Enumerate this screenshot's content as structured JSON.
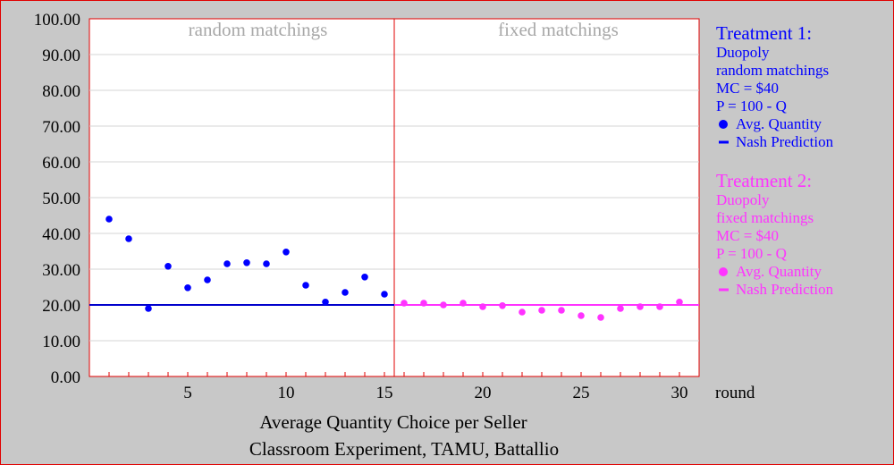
{
  "chart_data": {
    "type": "scatter",
    "x": [
      1,
      2,
      3,
      4,
      5,
      6,
      7,
      8,
      9,
      10,
      11,
      12,
      13,
      14,
      15,
      16,
      17,
      18,
      19,
      20,
      21,
      22,
      23,
      24,
      25,
      26,
      27,
      28,
      29,
      30
    ],
    "xlim": [
      0,
      31
    ],
    "ylim": [
      0,
      100
    ],
    "x_ticks": [
      5,
      10,
      15,
      20,
      25,
      30
    ],
    "y_ticks": [
      "0.00",
      "10.00",
      "20.00",
      "30.00",
      "40.00",
      "50.00",
      "60.00",
      "70.00",
      "80.00",
      "90.00",
      "100.00"
    ],
    "xlabel": "round",
    "regions": [
      "random matchings",
      "fixed matchings"
    ],
    "region_divider_x": 15.5,
    "caption": [
      "Average Quantity Choice per Seller",
      "Classroom Experiment, TAMU, Battallio"
    ],
    "series": [
      {
        "name": "Avg. Quantity",
        "treatment": 1,
        "color": "#0000ff",
        "x": [
          1,
          2,
          3,
          4,
          5,
          6,
          7,
          8,
          9,
          10,
          11,
          12,
          13,
          14,
          15
        ],
        "values": [
          44,
          38.5,
          19,
          30.8,
          24.8,
          27,
          31.5,
          31.8,
          31.5,
          34.8,
          25.5,
          20.8,
          23.5,
          27.8,
          23
        ]
      },
      {
        "name": "Avg. Quantity",
        "treatment": 2,
        "color": "#ff33ff",
        "x": [
          16,
          17,
          18,
          19,
          20,
          21,
          22,
          23,
          24,
          25,
          26,
          27,
          28,
          29,
          30
        ],
        "values": [
          20.5,
          20.5,
          20,
          20.5,
          19.5,
          19.8,
          18,
          18.5,
          18.5,
          17,
          16.5,
          19,
          19.5,
          19.5,
          20.8
        ]
      }
    ],
    "nash_prediction": {
      "value": 20,
      "colors": [
        "#0000cc",
        "#ff33ff"
      ]
    },
    "legend": [
      {
        "color": "#0000ff",
        "title": "Treatment 1:",
        "lines": [
          "Duopoly",
          "random matchings",
          "MC = $40",
          "P = 100 - Q"
        ],
        "marker_label": "Avg. Quantity",
        "line_label": "Nash Prediction"
      },
      {
        "color": "#ff33ff",
        "title": "Treatment 2:",
        "lines": [
          "Duopoly",
          "fixed matchings",
          "MC = $40",
          "P = 100 - Q"
        ],
        "marker_label": "Avg. Quantity",
        "line_label": "Nash Prediction"
      }
    ]
  }
}
